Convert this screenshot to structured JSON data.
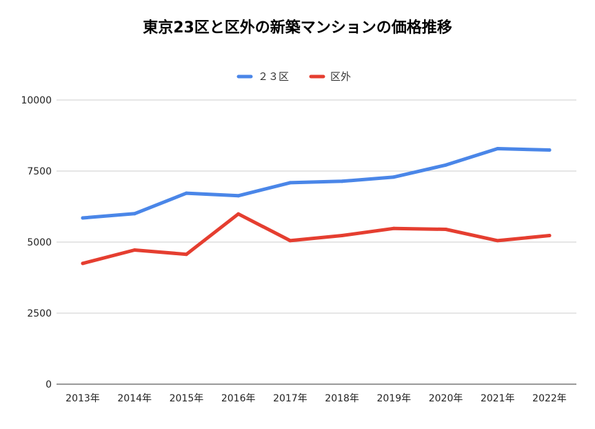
{
  "chart_data": {
    "type": "line",
    "title": "東京23区と区外の新築マンションの価格推移",
    "categories": [
      "2013年",
      "2014年",
      "2015年",
      "2016年",
      "2017年",
      "2018年",
      "2019年",
      "2020年",
      "2021年",
      "2022年"
    ],
    "series": [
      {
        "name": "２３区",
        "color": "#4a86e8",
        "values": [
          5850,
          6000,
          6720,
          6630,
          7090,
          7140,
          7290,
          7710,
          8290,
          8240
        ]
      },
      {
        "name": "区外",
        "color": "#e53e30",
        "values": [
          4250,
          4720,
          4570,
          5990,
          5050,
          5230,
          5480,
          5450,
          5050,
          5230
        ]
      }
    ],
    "ylim": [
      0,
      10000
    ],
    "yticks": [
      "0",
      "2500",
      "5000",
      "7500",
      "10000"
    ],
    "grid": true,
    "legend": "top-center",
    "xlabel": "",
    "ylabel": ""
  }
}
